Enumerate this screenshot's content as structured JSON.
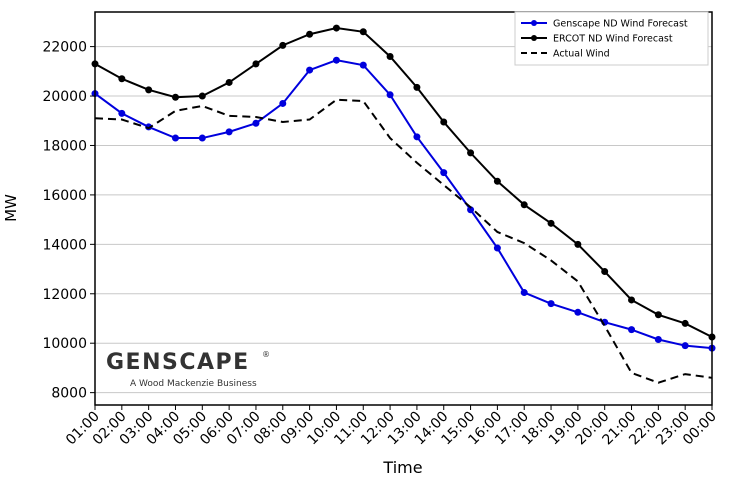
{
  "chart_data": {
    "type": "line",
    "xlabel": "Time",
    "ylabel": "MW",
    "ylim": [
      7500,
      23400
    ],
    "yticks": [
      8000,
      10000,
      12000,
      14000,
      16000,
      18000,
      20000,
      22000
    ],
    "grid": "horizontal",
    "legend_position": "top-right",
    "categories": [
      "01:00",
      "02:00",
      "03:00",
      "04:00",
      "05:00",
      "06:00",
      "07:00",
      "08:00",
      "09:00",
      "10:00",
      "11:00",
      "12:00",
      "13:00",
      "14:00",
      "15:00",
      "16:00",
      "17:00",
      "18:00",
      "19:00",
      "20:00",
      "21:00",
      "22:00",
      "23:00",
      "00:00"
    ],
    "series": [
      {
        "name": "Genscape ND Wind Forecast",
        "color": "#0000dd",
        "style": "solid-marker",
        "values": [
          20100,
          19300,
          18750,
          18300,
          18300,
          18550,
          18900,
          19700,
          21050,
          21450,
          21250,
          20050,
          18350,
          16900,
          15400,
          13850,
          12050,
          11600,
          11250,
          10850,
          10550,
          10150,
          9900,
          9800
        ]
      },
      {
        "name": "ERCOT ND Wind Forecast",
        "color": "#000000",
        "style": "solid-marker",
        "values": [
          21300,
          20700,
          20250,
          19950,
          20000,
          20550,
          21300,
          22050,
          22500,
          22750,
          22600,
          21600,
          20350,
          18950,
          17700,
          16550,
          15600,
          14850,
          14000,
          12900,
          11750,
          11150,
          10800,
          10250
        ]
      },
      {
        "name": "Actual Wind",
        "color": "#000000",
        "style": "dashed",
        "values": [
          19100,
          19050,
          18700,
          19400,
          19600,
          19200,
          19150,
          18950,
          19050,
          19850,
          19800,
          18300,
          17300,
          16400,
          15500,
          14500,
          14050,
          13350,
          12500,
          10700,
          8800,
          8400,
          8750,
          8600
        ]
      }
    ]
  },
  "logo": {
    "name": "GENSCAPE",
    "tagline": "A Wood Mackenzie Business"
  }
}
